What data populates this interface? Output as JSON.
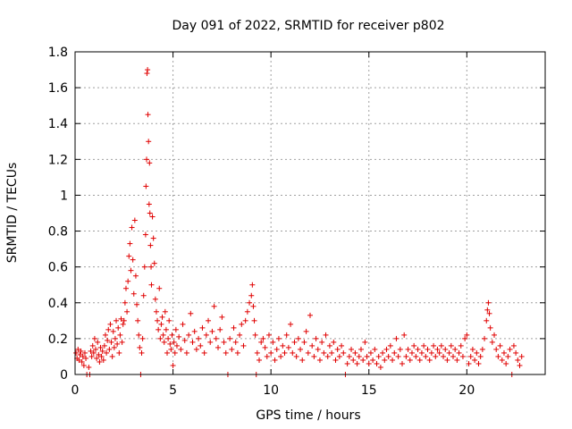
{
  "chart_data": {
    "type": "scatter",
    "title": "Day 091 of 2022, SRMTID for receiver p802",
    "xlabel": "GPS time / hours",
    "ylabel": "SRMTID / TECUs",
    "xlim": [
      0,
      24
    ],
    "ylim": [
      0,
      1.8
    ],
    "xticks": [
      0,
      5,
      10,
      15,
      20
    ],
    "xtick_labels": [
      "0",
      "5",
      "10",
      "15",
      "20"
    ],
    "yticks": [
      0,
      0.2,
      0.4,
      0.6,
      0.8,
      1.0,
      1.2,
      1.4,
      1.6,
      1.8
    ],
    "ytick_labels": [
      "0",
      "0.2",
      "0.4",
      "0.6",
      "0.8",
      "1",
      "1.2",
      "1.4",
      "1.6",
      "1.8"
    ],
    "grid": true,
    "marker": "+",
    "color": "#e00000",
    "series": [
      {
        "name": "SRMTID",
        "points": [
          [
            0.05,
            0.12
          ],
          [
            0.1,
            0.09
          ],
          [
            0.15,
            0.14
          ],
          [
            0.2,
            0.08
          ],
          [
            0.25,
            0.11
          ],
          [
            0.3,
            0.13
          ],
          [
            0.35,
            0.07
          ],
          [
            0.4,
            0.1
          ],
          [
            0.45,
            0.05
          ],
          [
            0.5,
            0.12
          ],
          [
            0.55,
            0.09
          ],
          [
            0.6,
            0.0
          ],
          [
            0.7,
            0.04
          ],
          [
            0.75,
            0.0
          ],
          [
            0.8,
            0.13
          ],
          [
            0.85,
            0.1
          ],
          [
            0.9,
            0.16
          ],
          [
            0.95,
            0.12
          ],
          [
            1.0,
            0.2
          ],
          [
            1.05,
            0.14
          ],
          [
            1.1,
            0.09
          ],
          [
            1.15,
            0.18
          ],
          [
            1.2,
            0.11
          ],
          [
            1.25,
            0.07
          ],
          [
            1.3,
            0.15
          ],
          [
            1.35,
            0.1
          ],
          [
            1.4,
            0.13
          ],
          [
            1.45,
            0.08
          ],
          [
            1.5,
            0.16
          ],
          [
            1.55,
            0.22
          ],
          [
            1.6,
            0.12
          ],
          [
            1.65,
            0.19
          ],
          [
            1.7,
            0.25
          ],
          [
            1.75,
            0.14
          ],
          [
            1.8,
            0.28
          ],
          [
            1.85,
            0.18
          ],
          [
            1.9,
            0.1
          ],
          [
            1.95,
            0.24
          ],
          [
            2.0,
            0.15
          ],
          [
            2.05,
            0.2
          ],
          [
            2.1,
            0.3
          ],
          [
            2.15,
            0.17
          ],
          [
            2.2,
            0.26
          ],
          [
            2.25,
            0.12
          ],
          [
            2.3,
            0.22
          ],
          [
            2.35,
            0.31
          ],
          [
            2.4,
            0.18
          ],
          [
            2.45,
            0.28
          ],
          [
            2.5,
            0.3
          ],
          [
            2.55,
            0.4
          ],
          [
            2.6,
            0.48
          ],
          [
            2.65,
            0.35
          ],
          [
            2.7,
            0.52
          ],
          [
            2.75,
            0.66
          ],
          [
            2.8,
            0.73
          ],
          [
            2.85,
            0.58
          ],
          [
            2.9,
            0.82
          ],
          [
            2.95,
            0.64
          ],
          [
            3.0,
            0.45
          ],
          [
            3.05,
            0.86
          ],
          [
            3.1,
            0.55
          ],
          [
            3.15,
            0.39
          ],
          [
            3.2,
            0.3
          ],
          [
            3.25,
            0.22
          ],
          [
            3.3,
            0.15
          ],
          [
            3.35,
            0.0
          ],
          [
            3.4,
            0.12
          ],
          [
            3.45,
            0.2
          ],
          [
            3.5,
            0.44
          ],
          [
            3.55,
            0.6
          ],
          [
            3.6,
            0.78
          ],
          [
            3.62,
            1.05
          ],
          [
            3.65,
            1.2
          ],
          [
            3.67,
            1.68
          ],
          [
            3.7,
            1.7
          ],
          [
            3.72,
            1.45
          ],
          [
            3.75,
            1.3
          ],
          [
            3.78,
            0.95
          ],
          [
            3.8,
            1.18
          ],
          [
            3.82,
            0.9
          ],
          [
            3.85,
            0.72
          ],
          [
            3.88,
            0.6
          ],
          [
            3.9,
            0.5
          ],
          [
            3.95,
            0.88
          ],
          [
            4.0,
            0.76
          ],
          [
            4.05,
            0.62
          ],
          [
            4.1,
            0.42
          ],
          [
            4.15,
            0.35
          ],
          [
            4.2,
            0.3
          ],
          [
            4.25,
            0.25
          ],
          [
            4.3,
            0.48
          ],
          [
            4.35,
            0.2
          ],
          [
            4.4,
            0.28
          ],
          [
            4.45,
            0.32
          ],
          [
            4.5,
            0.22
          ],
          [
            4.55,
            0.18
          ],
          [
            4.6,
            0.35
          ],
          [
            4.65,
            0.25
          ],
          [
            4.7,
            0.12
          ],
          [
            4.75,
            0.2
          ],
          [
            4.8,
            0.3
          ],
          [
            4.85,
            0.17
          ],
          [
            4.9,
            0.14
          ],
          [
            4.95,
            0.22
          ],
          [
            5.0,
            0.05
          ],
          [
            5.05,
            0.18
          ],
          [
            5.1,
            0.12
          ],
          [
            5.15,
            0.25
          ],
          [
            5.2,
            0.16
          ],
          [
            5.3,
            0.21
          ],
          [
            5.4,
            0.14
          ],
          [
            5.5,
            0.28
          ],
          [
            5.6,
            0.19
          ],
          [
            5.7,
            0.12
          ],
          [
            5.8,
            0.22
          ],
          [
            5.9,
            0.34
          ],
          [
            6.0,
            0.18
          ],
          [
            6.1,
            0.24
          ],
          [
            6.2,
            0.14
          ],
          [
            6.3,
            0.2
          ],
          [
            6.4,
            0.16
          ],
          [
            6.5,
            0.26
          ],
          [
            6.6,
            0.12
          ],
          [
            6.7,
            0.22
          ],
          [
            6.8,
            0.3
          ],
          [
            6.9,
            0.18
          ],
          [
            7.0,
            0.24
          ],
          [
            7.1,
            0.38
          ],
          [
            7.2,
            0.2
          ],
          [
            7.3,
            0.15
          ],
          [
            7.4,
            0.25
          ],
          [
            7.5,
            0.32
          ],
          [
            7.6,
            0.18
          ],
          [
            7.7,
            0.12
          ],
          [
            7.8,
            0.0
          ],
          [
            7.9,
            0.2
          ],
          [
            8.0,
            0.14
          ],
          [
            8.1,
            0.26
          ],
          [
            8.2,
            0.18
          ],
          [
            8.3,
            0.12
          ],
          [
            8.4,
            0.22
          ],
          [
            8.5,
            0.28
          ],
          [
            8.6,
            0.16
          ],
          [
            8.7,
            0.3
          ],
          [
            8.8,
            0.35
          ],
          [
            8.9,
            0.4
          ],
          [
            9.0,
            0.44
          ],
          [
            9.05,
            0.5
          ],
          [
            9.1,
            0.38
          ],
          [
            9.15,
            0.3
          ],
          [
            9.2,
            0.22
          ],
          [
            9.25,
            0.0
          ],
          [
            9.3,
            0.12
          ],
          [
            9.4,
            0.08
          ],
          [
            9.5,
            0.18
          ],
          [
            9.6,
            0.2
          ],
          [
            9.7,
            0.15
          ],
          [
            9.8,
            0.1
          ],
          [
            9.9,
            0.22
          ],
          [
            10.0,
            0.12
          ],
          [
            10.1,
            0.18
          ],
          [
            10.2,
            0.08
          ],
          [
            10.3,
            0.14
          ],
          [
            10.4,
            0.2
          ],
          [
            10.5,
            0.1
          ],
          [
            10.6,
            0.16
          ],
          [
            10.7,
            0.12
          ],
          [
            10.8,
            0.22
          ],
          [
            10.9,
            0.15
          ],
          [
            11.0,
            0.28
          ],
          [
            11.1,
            0.12
          ],
          [
            11.2,
            0.18
          ],
          [
            11.3,
            0.1
          ],
          [
            11.4,
            0.2
          ],
          [
            11.5,
            0.14
          ],
          [
            11.6,
            0.08
          ],
          [
            11.7,
            0.18
          ],
          [
            11.8,
            0.24
          ],
          [
            11.9,
            0.12
          ],
          [
            12.0,
            0.33
          ],
          [
            12.1,
            0.16
          ],
          [
            12.2,
            0.1
          ],
          [
            12.3,
            0.2
          ],
          [
            12.4,
            0.14
          ],
          [
            12.5,
            0.08
          ],
          [
            12.6,
            0.18
          ],
          [
            12.7,
            0.12
          ],
          [
            12.8,
            0.22
          ],
          [
            12.9,
            0.1
          ],
          [
            13.0,
            0.16
          ],
          [
            13.1,
            0.12
          ],
          [
            13.2,
            0.18
          ],
          [
            13.3,
            0.08
          ],
          [
            13.4,
            0.14
          ],
          [
            13.5,
            0.1
          ],
          [
            13.6,
            0.16
          ],
          [
            13.7,
            0.12
          ],
          [
            13.8,
            0.0
          ],
          [
            13.9,
            0.06
          ],
          [
            14.0,
            0.1
          ],
          [
            14.1,
            0.14
          ],
          [
            14.2,
            0.08
          ],
          [
            14.3,
            0.12
          ],
          [
            14.4,
            0.06
          ],
          [
            14.5,
            0.1
          ],
          [
            14.6,
            0.14
          ],
          [
            14.7,
            0.08
          ],
          [
            14.8,
            0.18
          ],
          [
            14.9,
            0.1
          ],
          [
            15.0,
            0.06
          ],
          [
            15.1,
            0.12
          ],
          [
            15.2,
            0.08
          ],
          [
            15.3,
            0.14
          ],
          [
            15.4,
            0.06
          ],
          [
            15.5,
            0.1
          ],
          [
            15.6,
            0.04
          ],
          [
            15.7,
            0.12
          ],
          [
            15.8,
            0.08
          ],
          [
            15.9,
            0.14
          ],
          [
            16.0,
            0.1
          ],
          [
            16.1,
            0.16
          ],
          [
            16.2,
            0.08
          ],
          [
            16.3,
            0.12
          ],
          [
            16.4,
            0.2
          ],
          [
            16.5,
            0.1
          ],
          [
            16.6,
            0.14
          ],
          [
            16.7,
            0.06
          ],
          [
            16.8,
            0.22
          ],
          [
            16.9,
            0.1
          ],
          [
            17.0,
            0.14
          ],
          [
            17.1,
            0.08
          ],
          [
            17.2,
            0.12
          ],
          [
            17.3,
            0.16
          ],
          [
            17.4,
            0.1
          ],
          [
            17.5,
            0.14
          ],
          [
            17.6,
            0.08
          ],
          [
            17.7,
            0.12
          ],
          [
            17.8,
            0.16
          ],
          [
            17.9,
            0.1
          ],
          [
            18.0,
            0.14
          ],
          [
            18.1,
            0.08
          ],
          [
            18.2,
            0.12
          ],
          [
            18.3,
            0.16
          ],
          [
            18.4,
            0.1
          ],
          [
            18.5,
            0.14
          ],
          [
            18.6,
            0.12
          ],
          [
            18.7,
            0.16
          ],
          [
            18.8,
            0.1
          ],
          [
            18.9,
            0.14
          ],
          [
            19.0,
            0.08
          ],
          [
            19.1,
            0.12
          ],
          [
            19.2,
            0.16
          ],
          [
            19.3,
            0.1
          ],
          [
            19.4,
            0.14
          ],
          [
            19.5,
            0.08
          ],
          [
            19.6,
            0.12
          ],
          [
            19.7,
            0.16
          ],
          [
            19.8,
            0.1
          ],
          [
            19.9,
            0.2
          ],
          [
            20.0,
            0.22
          ],
          [
            20.1,
            0.06
          ],
          [
            20.2,
            0.1
          ],
          [
            20.3,
            0.14
          ],
          [
            20.4,
            0.08
          ],
          [
            20.5,
            0.12
          ],
          [
            20.6,
            0.06
          ],
          [
            20.7,
            0.1
          ],
          [
            20.8,
            0.14
          ],
          [
            20.9,
            0.2
          ],
          [
            21.0,
            0.3
          ],
          [
            21.05,
            0.36
          ],
          [
            21.1,
            0.4
          ],
          [
            21.15,
            0.34
          ],
          [
            21.2,
            0.26
          ],
          [
            21.3,
            0.18
          ],
          [
            21.4,
            0.22
          ],
          [
            21.5,
            0.14
          ],
          [
            21.6,
            0.1
          ],
          [
            21.7,
            0.16
          ],
          [
            21.8,
            0.08
          ],
          [
            21.9,
            0.12
          ],
          [
            22.0,
            0.06
          ],
          [
            22.1,
            0.1
          ],
          [
            22.2,
            0.14
          ],
          [
            22.3,
            0.0
          ],
          [
            22.4,
            0.16
          ],
          [
            22.5,
            0.12
          ],
          [
            22.6,
            0.08
          ],
          [
            22.7,
            0.05
          ],
          [
            22.8,
            0.1
          ]
        ]
      }
    ]
  }
}
